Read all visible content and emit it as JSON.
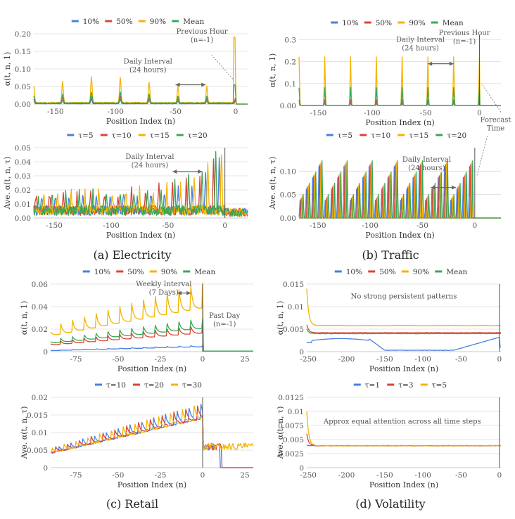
{
  "colors": {
    "blue": "#4a7fe0",
    "red": "#db4437",
    "yellow": "#f4b400",
    "green": "#3aa856",
    "grid": "#dcdcdc",
    "axis": "#b8b8b8",
    "forecast_line": "#555555"
  },
  "captions": {
    "a": "(a) Electricity",
    "b": "(b) Traffic",
    "c": "(c) Retail",
    "d": "(d) Volatility"
  },
  "annotation_texts": {
    "daily1": "Daily Interval",
    "daily2": "(24 hours)",
    "prev1": "Previous Hour",
    "prev2": "(n=-1)",
    "forecast1": "Forecast",
    "forecast2": "Time",
    "weekly1": "Weekly Interval",
    "weekly2": "(7 Days)",
    "pastday1": "Past Day",
    "pastday2": "(n=-1)",
    "no_patterns": "No strong persistent patterns",
    "approx_equal": "Approx  equal attention across all time steps"
  },
  "chart_data": [
    {
      "id": "elec-top",
      "type": "line",
      "panel": "a",
      "xlabel": "Position Index (n)",
      "ylabel": "α(t, n, 1)",
      "xlim": [
        -168,
        10
      ],
      "ylim": [
        0,
        0.2
      ],
      "grid": true,
      "legend": "top",
      "xticks": [
        -150,
        -100,
        -50,
        0
      ],
      "yticks": [
        0,
        0.05,
        0.1,
        0.15,
        0.2
      ],
      "ytick_labels": [
        "0.00",
        "0.05",
        "0.10",
        "0.15",
        "0.20"
      ],
      "forecast_line": false,
      "series": [
        {
          "name": "10%",
          "color": "blue",
          "base": 0.001,
          "peak_mode": "diurnal",
          "peak": 0.01,
          "noise": 0.001
        },
        {
          "name": "50%",
          "color": "red",
          "base": 0.002,
          "peak_mode": "diurnal",
          "peak": 0.016,
          "noise": 0.002
        },
        {
          "name": "90%",
          "color": "yellow",
          "base": 0.004,
          "peak_mode": "diurnal",
          "peak": 0.06,
          "noise": 0.003
        },
        {
          "name": "Mean",
          "color": "green",
          "base": 0.003,
          "peak_mode": "diurnal",
          "peak": 0.025,
          "noise": 0.002
        }
      ],
      "annotations": [
        {
          "kind": "text",
          "lines": [
            "daily1",
            "daily2"
          ],
          "x": -73,
          "y": 0.115
        },
        {
          "kind": "arrow",
          "x1": -50,
          "x2": -25,
          "y": 0.055
        },
        {
          "kind": "text",
          "lines": [
            "prev1",
            "prev2"
          ],
          "x": -28,
          "y": 0.2
        },
        {
          "kind": "pointer",
          "fx": -20,
          "fy": 0.14,
          "tx": -2,
          "ty": 0.07
        }
      ]
    },
    {
      "id": "elec-bottom",
      "type": "line",
      "panel": "a",
      "xlabel": "Position Index (n)",
      "ylabel": "Ave. α(t, n, τ)",
      "xlim": [
        -168,
        20
      ],
      "ylim": [
        0,
        0.05
      ],
      "grid": true,
      "legend": "top",
      "xticks": [
        -150,
        -100,
        -50,
        0
      ],
      "yticks": [
        0,
        0.01,
        0.02,
        0.03,
        0.04,
        0.05
      ],
      "ytick_labels": [
        "0.00",
        "0.01",
        "0.02",
        "0.03",
        "0.04",
        "0.05"
      ],
      "forecast_line": true,
      "forecast_x": 0,
      "series": [
        {
          "name": "τ=5",
          "color": "blue",
          "base": 0.004,
          "peak_mode": "shifted",
          "shift": 5,
          "peak": 0.02,
          "noise": 0.003
        },
        {
          "name": "τ=10",
          "color": "red",
          "base": 0.004,
          "peak_mode": "shifted",
          "shift": 10,
          "peak": 0.024,
          "noise": 0.003
        },
        {
          "name": "τ=15",
          "color": "yellow",
          "base": 0.004,
          "peak_mode": "shifted",
          "shift": 15,
          "peak": 0.024,
          "noise": 0.003
        },
        {
          "name": "τ=20",
          "color": "green",
          "base": 0.004,
          "peak_mode": "shifted",
          "shift": 20,
          "peak": 0.026,
          "noise": 0.003
        }
      ],
      "annotations": [
        {
          "kind": "text",
          "lines": [
            "daily1",
            "daily2"
          ],
          "x": -66,
          "y": 0.042
        },
        {
          "kind": "arrow",
          "x1": -46,
          "x2": -20,
          "y": 0.033
        }
      ]
    },
    {
      "id": "traffic-top",
      "type": "line",
      "panel": "b",
      "xlabel": "Position Index (n)",
      "ylabel": "α(t, n, 1)",
      "xlim": [
        -168,
        20
      ],
      "ylim": [
        0,
        0.32
      ],
      "grid": true,
      "legend": "top",
      "xticks": [
        -150,
        -100,
        -50,
        0
      ],
      "yticks": [
        0,
        0.1,
        0.2,
        0.3
      ],
      "ytick_labels": [
        "0.00",
        "0.1",
        "0.2",
        "0.3"
      ],
      "forecast_line": true,
      "forecast_x": 0,
      "series": [
        {
          "name": "10%",
          "color": "blue",
          "base": 0.0,
          "peak_mode": "daily",
          "peak": 0.01,
          "noise": 0.0005
        },
        {
          "name": "50%",
          "color": "red",
          "base": 0.001,
          "peak_mode": "daily",
          "peak": 0.025,
          "noise": 0.0005
        },
        {
          "name": "90%",
          "color": "yellow",
          "base": 0.001,
          "peak_mode": "daily",
          "peak": 0.22,
          "noise": 0.0005
        },
        {
          "name": "Mean",
          "color": "green",
          "base": 0.001,
          "peak_mode": "daily",
          "peak": 0.08,
          "noise": 0.0005
        }
      ],
      "annotations": [
        {
          "kind": "text",
          "lines": [
            "daily1",
            "daily2"
          ],
          "x": -55,
          "y": 0.29
        },
        {
          "kind": "arrow",
          "x1": -48,
          "x2": -24,
          "y": 0.19
        },
        {
          "kind": "text",
          "lines": [
            "prev1",
            "prev2"
          ],
          "x": -14,
          "y": 0.32
        },
        {
          "kind": "pointer",
          "fx": 20,
          "fy": -0.03,
          "tx": 2,
          "ty": 0.1
        }
      ]
    },
    {
      "id": "traffic-bottom",
      "type": "line",
      "panel": "b",
      "xlabel": "Position Index (n)",
      "ylabel": "Ave. α(t, n, τ)",
      "xlim": [
        -168,
        25
      ],
      "ylim": [
        0,
        0.15
      ],
      "grid": true,
      "legend": "top",
      "xticks": [
        -150,
        -100,
        -50,
        0
      ],
      "yticks": [
        0,
        0.05,
        0.1
      ],
      "ytick_labels": [
        "0.00",
        "0.05",
        "0.10"
      ],
      "forecast_line": true,
      "forecast_x": 0,
      "series": [
        {
          "name": "τ=5",
          "color": "blue",
          "base": 0.0,
          "peak_mode": "decay",
          "shift": 5,
          "peak": 0.13,
          "noise": 0.0
        },
        {
          "name": "τ=10",
          "color": "red",
          "base": 0.0,
          "peak_mode": "decay",
          "shift": 10,
          "peak": 0.13,
          "noise": 0.0
        },
        {
          "name": "τ=15",
          "color": "yellow",
          "base": 0.0,
          "peak_mode": "decay",
          "shift": 15,
          "peak": 0.13,
          "noise": 0.0
        },
        {
          "name": "τ=20",
          "color": "green",
          "base": 0.0,
          "peak_mode": "decay",
          "shift": 20,
          "peak": 0.13,
          "noise": 0.0
        }
      ],
      "annotations": [
        {
          "kind": "text",
          "lines": [
            "daily1",
            "daily2"
          ],
          "x": -46,
          "y": 0.12
        },
        {
          "kind": "arrow",
          "x1": -42,
          "x2": -18,
          "y": 0.065
        },
        {
          "kind": "text",
          "lines": [
            "forecast1",
            "forecast2"
          ],
          "x": 20,
          "y": 0.205
        },
        {
          "kind": "pointer",
          "fx": 12,
          "fy": 0.175,
          "tx": 2,
          "ty": 0.09
        }
      ]
    },
    {
      "id": "retail-top",
      "type": "line",
      "panel": "c",
      "xlabel": "Position Index (n)",
      "ylabel": "α(t, n, 1)",
      "xlim": [
        -90,
        30
      ],
      "ylim": [
        0,
        0.06
      ],
      "grid": true,
      "legend": "top",
      "xticks": [
        -75,
        -50,
        -25,
        0,
        25
      ],
      "yticks": [
        0,
        0.02,
        0.04,
        0.06
      ],
      "ytick_labels": [
        "0",
        "0.02",
        "0.04",
        "0.06"
      ],
      "forecast_line": true,
      "forecast_x": 0,
      "series": [
        {
          "name": "10%",
          "color": "blue",
          "base": 0.001,
          "peak_mode": "weekly",
          "end": 0.005,
          "amp": 0.25
        },
        {
          "name": "50%",
          "color": "red",
          "base": 0.007,
          "peak_mode": "weekly",
          "end": 0.02,
          "amp": 0.35
        },
        {
          "name": "90%",
          "color": "yellow",
          "base": 0.018,
          "peak_mode": "weekly",
          "end": 0.05,
          "amp": 0.45
        },
        {
          "name": "Mean",
          "color": "green",
          "base": 0.009,
          "peak_mode": "weekly",
          "end": 0.025,
          "amp": 0.35
        }
      ],
      "annotations": [
        {
          "kind": "text",
          "lines": [
            "weekly1",
            "weekly2"
          ],
          "x": -23,
          "y": 0.058
        },
        {
          "kind": "arrow",
          "x1": -15,
          "x2": -7,
          "y": 0.052
        },
        {
          "kind": "text",
          "lines": [
            "pastday1",
            "pastday2"
          ],
          "x": 13,
          "y": 0.03
        }
      ]
    },
    {
      "id": "retail-bottom",
      "type": "line",
      "panel": "c",
      "xlabel": "Position Index (n)",
      "ylabel": "Ave. α(t, n, τ)",
      "xlim": [
        -90,
        30
      ],
      "ylim": [
        0,
        0.02
      ],
      "grid": true,
      "legend": "top",
      "xticks": [
        -75,
        -50,
        -25,
        0,
        25
      ],
      "yticks": [
        0,
        0.005,
        0.01,
        0.015,
        0.02
      ],
      "ytick_labels": [
        "0",
        "0.005",
        "0.01",
        "0.015",
        "0.02"
      ],
      "forecast_line": true,
      "forecast_x": 0,
      "series": [
        {
          "name": "τ=10",
          "color": "blue",
          "base": 0.005,
          "peak_mode": "retailb",
          "shift": 1,
          "end": 0.017
        },
        {
          "name": "τ=20",
          "color": "red",
          "base": 0.005,
          "peak_mode": "retailb",
          "shift": 3,
          "end": 0.017
        },
        {
          "name": "τ=30",
          "color": "yellow",
          "base": 0.005,
          "peak_mode": "retailb",
          "shift": 5,
          "end": 0.017
        }
      ],
      "annotations": []
    },
    {
      "id": "vol-top",
      "type": "line",
      "panel": "d",
      "xlabel": "Position Index (n)",
      "ylabel": "α(t, n, 1)",
      "xlim": [
        -252,
        2
      ],
      "ylim": [
        0,
        0.015
      ],
      "grid": true,
      "legend": "top",
      "xticks": [
        -250,
        -200,
        -150,
        -100,
        -50,
        0
      ],
      "yticks": [
        0,
        0.005,
        0.01,
        0.015
      ],
      "ytick_labels": [
        "0",
        "0.005",
        "0.01",
        "0.015"
      ],
      "forecast_line": true,
      "forecast_x": 0,
      "series": [
        {
          "name": "10%",
          "color": "blue",
          "base": 0.0,
          "peak_mode": "vol10"
        },
        {
          "name": "50%",
          "color": "red",
          "base": 0.0042,
          "peak_mode": "flat",
          "start": 0.006
        },
        {
          "name": "90%",
          "color": "yellow",
          "base": 0.0058,
          "peak_mode": "flat",
          "start": 0.014
        },
        {
          "name": "Mean",
          "color": "green",
          "base": 0.004,
          "peak_mode": "flat",
          "start": 0.005
        }
      ],
      "annotations": [
        {
          "kind": "text",
          "lines": [
            "no_patterns"
          ],
          "x": -125,
          "y": 0.0118
        }
      ]
    },
    {
      "id": "vol-bottom",
      "type": "line",
      "panel": "d",
      "xlabel": "Position Index (n)",
      "ylabel": "Ave. α(t, n, τ)",
      "xlim": [
        -252,
        2
      ],
      "ylim": [
        0,
        0.0125
      ],
      "grid": true,
      "legend": "top",
      "xticks": [
        -250,
        -200,
        -150,
        -100,
        -50,
        0
      ],
      "yticks": [
        0,
        0.0025,
        0.005,
        0.0075,
        0.01,
        0.0125
      ],
      "ytick_labels": [
        "0",
        "0.0025",
        "0.005",
        "0.0075",
        "0.01",
        "0.0125"
      ],
      "forecast_line": true,
      "forecast_x": 0,
      "series": [
        {
          "name": "τ=1",
          "color": "blue",
          "base": 0.0039,
          "peak_mode": "flat",
          "start": 0.004
        },
        {
          "name": "τ=3",
          "color": "red",
          "base": 0.0039,
          "peak_mode": "flat",
          "start": 0.006
        },
        {
          "name": "τ=5",
          "color": "yellow",
          "base": 0.0039,
          "peak_mode": "flat",
          "start": 0.01
        }
      ],
      "annotations": [
        {
          "kind": "text",
          "lines": [
            "approx_equal"
          ],
          "x": -127,
          "y": 0.0078
        }
      ]
    }
  ]
}
